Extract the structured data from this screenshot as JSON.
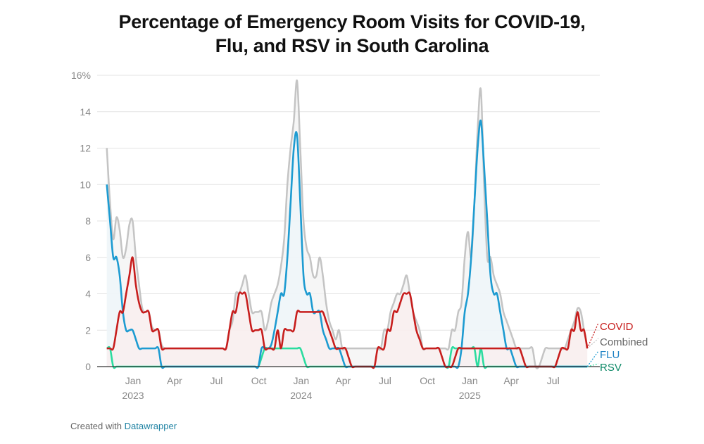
{
  "title_line1": "Percentage of Emergency Room Visits for COVID-19,",
  "title_line2": "Flu, and RSV in South Carolina",
  "footer": {
    "prefix": "Created with",
    "link": "Datawrapper"
  },
  "chart_data": {
    "type": "line",
    "title": "Percentage of Emergency Room Visits for COVID-19, Flu, and RSV in South Carolina",
    "xlabel": "",
    "ylabel": "",
    "ylim": [
      0,
      16
    ],
    "y_ticks": [
      0,
      2,
      4,
      6,
      8,
      10,
      12,
      14,
      16
    ],
    "y_tick_labels": [
      "0",
      "2",
      "4",
      "6",
      "8",
      "10",
      "12",
      "14",
      "16%"
    ],
    "x_ticks": [
      {
        "date": "2023-01-01",
        "label": "Jan",
        "year": "2023"
      },
      {
        "date": "2023-04-01",
        "label": "Apr",
        "year": ""
      },
      {
        "date": "2023-07-01",
        "label": "Jul",
        "year": ""
      },
      {
        "date": "2023-10-01",
        "label": "Oct",
        "year": ""
      },
      {
        "date": "2024-01-01",
        "label": "Jan",
        "year": "2024"
      },
      {
        "date": "2024-04-01",
        "label": "Apr",
        "year": ""
      },
      {
        "date": "2024-07-01",
        "label": "Jul",
        "year": ""
      },
      {
        "date": "2024-10-01",
        "label": "Oct",
        "year": ""
      },
      {
        "date": "2025-01-01",
        "label": "Jan",
        "year": "2025"
      },
      {
        "date": "2025-04-01",
        "label": "Apr",
        "year": ""
      },
      {
        "date": "2025-07-01",
        "label": "Jul",
        "year": ""
      }
    ],
    "grid": "horizontal",
    "legend": "right, direct labels at line ends",
    "x": [
      "2022-11-05",
      "2022-11-12",
      "2022-11-19",
      "2022-11-26",
      "2022-12-03",
      "2022-12-10",
      "2022-12-17",
      "2022-12-24",
      "2022-12-31",
      "2023-01-07",
      "2023-01-14",
      "2023-01-21",
      "2023-01-28",
      "2023-02-04",
      "2023-02-11",
      "2023-02-18",
      "2023-02-25",
      "2023-03-04",
      "2023-03-11",
      "2023-03-18",
      "2023-03-25",
      "2023-04-01",
      "2023-04-08",
      "2023-04-15",
      "2023-04-22",
      "2023-04-29",
      "2023-05-06",
      "2023-05-13",
      "2023-05-20",
      "2023-05-27",
      "2023-06-03",
      "2023-06-10",
      "2023-06-17",
      "2023-06-24",
      "2023-07-01",
      "2023-07-08",
      "2023-07-15",
      "2023-07-22",
      "2023-07-29",
      "2023-08-05",
      "2023-08-12",
      "2023-08-19",
      "2023-08-26",
      "2023-09-02",
      "2023-09-09",
      "2023-09-16",
      "2023-09-23",
      "2023-09-30",
      "2023-10-07",
      "2023-10-14",
      "2023-10-21",
      "2023-10-28",
      "2023-11-04",
      "2023-11-11",
      "2023-11-18",
      "2023-11-25",
      "2023-12-02",
      "2023-12-09",
      "2023-12-16",
      "2023-12-23",
      "2023-12-30",
      "2024-01-06",
      "2024-01-13",
      "2024-01-20",
      "2024-01-27",
      "2024-02-03",
      "2024-02-10",
      "2024-02-17",
      "2024-02-24",
      "2024-03-02",
      "2024-03-09",
      "2024-03-16",
      "2024-03-23",
      "2024-03-30",
      "2024-04-06",
      "2024-04-13",
      "2024-04-20",
      "2024-04-27",
      "2024-05-04",
      "2024-05-11",
      "2024-05-18",
      "2024-05-25",
      "2024-06-01",
      "2024-06-08",
      "2024-06-15",
      "2024-06-22",
      "2024-06-29",
      "2024-07-06",
      "2024-07-13",
      "2024-07-20",
      "2024-07-27",
      "2024-08-03",
      "2024-08-10",
      "2024-08-17",
      "2024-08-24",
      "2024-08-31",
      "2024-09-07",
      "2024-09-14",
      "2024-09-21",
      "2024-09-28",
      "2024-10-05",
      "2024-10-12",
      "2024-10-19",
      "2024-10-26",
      "2024-11-02",
      "2024-11-09",
      "2024-11-16",
      "2024-11-23",
      "2024-11-30",
      "2024-12-07",
      "2024-12-14",
      "2024-12-21",
      "2024-12-28",
      "2025-01-04",
      "2025-01-11",
      "2025-01-18",
      "2025-01-25",
      "2025-02-01",
      "2025-02-08",
      "2025-02-15",
      "2025-02-22",
      "2025-03-01",
      "2025-03-08",
      "2025-03-15",
      "2025-03-22",
      "2025-03-29",
      "2025-04-05",
      "2025-04-12",
      "2025-04-19",
      "2025-04-26",
      "2025-05-03",
      "2025-05-10",
      "2025-05-17",
      "2025-05-24",
      "2025-05-31",
      "2025-06-07",
      "2025-06-14",
      "2025-06-21",
      "2025-06-28",
      "2025-07-05",
      "2025-07-12",
      "2025-07-19",
      "2025-07-26",
      "2025-08-02",
      "2025-08-09",
      "2025-08-16",
      "2025-08-23",
      "2025-08-30",
      "2025-09-06",
      "2025-09-13"
    ],
    "series": [
      {
        "name": "Combined",
        "color": "#c4c4c4",
        "label_color": "#666666",
        "fill": "#f2f2f2",
        "values": [
          12,
          9,
          7,
          8.2,
          7.5,
          6,
          6.5,
          7.8,
          8,
          6,
          4.5,
          3.2,
          3,
          3,
          2.2,
          2,
          2,
          1.2,
          1,
          1,
          1,
          1,
          1,
          1,
          1,
          1,
          1,
          1,
          1,
          1,
          1,
          1,
          1,
          1,
          1,
          1,
          1,
          1,
          2,
          2.5,
          4,
          4,
          4.5,
          5,
          4,
          3,
          3,
          3,
          3,
          2,
          2.5,
          3.5,
          4,
          4.5,
          5.5,
          7,
          10,
          12,
          13.5,
          15.7,
          12,
          8,
          6.5,
          6,
          5,
          5,
          6,
          5,
          3.5,
          2.5,
          2,
          1.5,
          2,
          1,
          1,
          1,
          1,
          1,
          1,
          1,
          1,
          1,
          1,
          1,
          1,
          1,
          2,
          2,
          3,
          3.5,
          4,
          4,
          4.5,
          5,
          4,
          3,
          2.5,
          2,
          1,
          1,
          1,
          1,
          1,
          1,
          1,
          1,
          1,
          2,
          2,
          3,
          3.5,
          6,
          7.4,
          6,
          9,
          13,
          15.2,
          10,
          6,
          6,
          5,
          4.5,
          4,
          3,
          2.5,
          2,
          1.5,
          1,
          1,
          1,
          1,
          1,
          1,
          0,
          0,
          0.5,
          1,
          1,
          1,
          1,
          1,
          1,
          1,
          1.5,
          2,
          2.5,
          3.2,
          3,
          2,
          1
        ]
      },
      {
        "name": "COVID",
        "color": "#c71e1d",
        "label_color": "#c71e1d",
        "fill": "#fbeeee",
        "values": [
          1,
          1,
          1,
          2,
          3,
          3,
          4,
          5,
          6,
          4.5,
          3.5,
          3,
          3,
          3,
          2,
          2,
          2,
          1,
          1,
          1,
          1,
          1,
          1,
          1,
          1,
          1,
          1,
          1,
          1,
          1,
          1,
          1,
          1,
          1,
          1,
          1,
          1,
          1,
          2,
          3,
          3,
          4,
          4,
          4,
          3,
          2,
          2,
          2,
          2,
          1,
          1,
          1,
          1,
          2,
          1,
          2,
          2,
          2,
          2,
          3,
          3,
          3,
          3,
          3,
          3,
          3,
          3,
          3,
          2.5,
          2,
          1.5,
          1,
          1,
          1,
          1,
          0.5,
          0,
          0,
          0,
          0,
          0,
          0,
          0,
          0,
          1,
          1,
          1,
          2,
          2,
          3,
          3,
          3.5,
          4,
          4,
          4,
          3,
          2,
          1.5,
          1,
          1,
          1,
          1,
          1,
          1,
          0.5,
          0,
          0,
          0,
          0.5,
          1,
          1,
          1,
          1,
          1,
          1,
          1,
          1,
          1,
          1,
          1,
          1,
          1,
          1,
          1,
          1,
          1,
          1,
          1,
          1,
          0.5,
          0,
          0,
          0,
          0,
          0,
          0,
          0,
          0,
          0,
          0,
          0.5,
          1,
          1,
          1,
          2,
          2,
          3,
          2,
          2,
          1
        ]
      },
      {
        "name": "FLU",
        "color": "#1d9bd1",
        "label_color": "#1d81c4",
        "fill": "#eef7fb",
        "values": [
          10,
          8,
          6,
          6,
          5,
          3,
          2,
          2,
          2,
          1.5,
          1,
          1,
          1,
          1,
          1,
          1,
          1,
          0,
          0,
          0,
          0,
          0,
          0,
          0,
          0,
          0,
          0,
          0,
          0,
          0,
          0,
          0,
          0,
          0,
          0,
          0,
          0,
          0,
          0,
          0,
          0,
          0,
          0,
          0,
          0,
          0,
          0,
          0,
          1,
          1,
          1,
          1.2,
          2,
          3,
          4,
          4,
          6,
          9,
          12,
          12.7,
          9,
          5,
          4,
          4,
          3,
          3,
          3,
          2,
          1.5,
          1,
          1,
          1,
          1,
          0.5,
          0,
          0,
          0,
          0,
          0,
          0,
          0,
          0,
          0,
          0,
          0,
          0,
          0,
          0,
          0,
          0,
          0,
          0,
          0,
          0,
          0,
          0,
          0,
          0,
          0,
          0,
          0,
          0,
          0,
          0,
          0,
          0,
          0,
          0,
          0,
          0,
          1,
          3,
          4,
          6,
          9,
          12,
          13.5,
          11,
          8,
          5,
          4,
          4,
          3,
          2,
          1,
          1,
          0.5,
          0,
          0,
          0,
          0,
          0,
          0,
          0,
          0,
          0,
          0,
          0,
          0,
          0,
          0,
          0,
          0,
          0,
          0,
          0,
          0,
          0,
          0,
          0
        ]
      },
      {
        "name": "RSV",
        "color": "#2bdc9f",
        "label_color": "#0f8a68",
        "fill": "#e9f2ef",
        "values": [
          1,
          1,
          0,
          0,
          0,
          0,
          0,
          0,
          0,
          0,
          0,
          0,
          0,
          0,
          0,
          0,
          0,
          0,
          0,
          0,
          0,
          0,
          0,
          0,
          0,
          0,
          0,
          0,
          0,
          0,
          0,
          0,
          0,
          0,
          0,
          0,
          0,
          0,
          0,
          0,
          0,
          0,
          0,
          0,
          0,
          0,
          0,
          0,
          0.5,
          1,
          1,
          1,
          1,
          1,
          1,
          1,
          1,
          1,
          1,
          1,
          1,
          0.5,
          0,
          0,
          0,
          0,
          0,
          0,
          0,
          0,
          0,
          0,
          0,
          0,
          0,
          0,
          0,
          0,
          0,
          0,
          0,
          0,
          0,
          0,
          0,
          0,
          0,
          0,
          0,
          0,
          0,
          0,
          0,
          0,
          0,
          0,
          0,
          0,
          0,
          0,
          0,
          0,
          0,
          0,
          0,
          0,
          0,
          1,
          1,
          1,
          1,
          1,
          1,
          1,
          1,
          0,
          1,
          0,
          0,
          0,
          0,
          0,
          0,
          0,
          0,
          0,
          0,
          0,
          0,
          0,
          0,
          0,
          0,
          0,
          0,
          0,
          0,
          0,
          0,
          0,
          0,
          0,
          0,
          0,
          0,
          0,
          0,
          0,
          0,
          0
        ]
      }
    ]
  }
}
